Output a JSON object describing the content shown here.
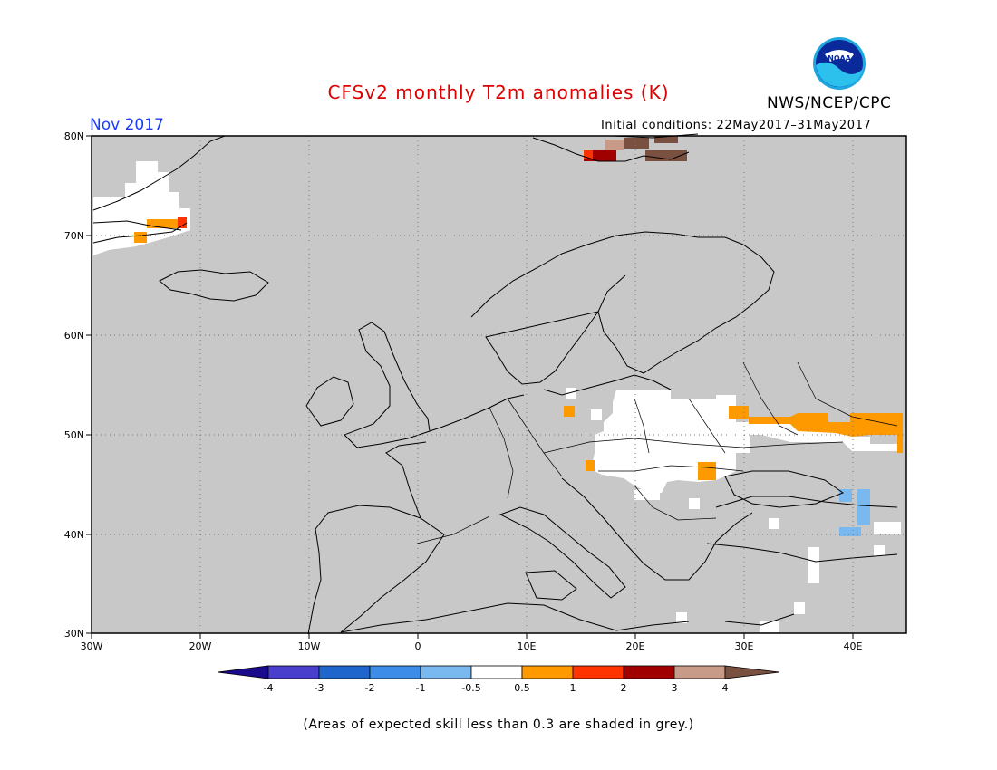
{
  "header": {
    "title": "CFSv2 monthly T2m anomalies (K)",
    "agency": "NWS/NCEP/CPC",
    "logo_text": "NOAA",
    "month": "Nov 2017",
    "initial_conditions": "Initial conditions: 22May2017–31May2017"
  },
  "map": {
    "lon_range": [
      -30,
      45
    ],
    "lat_range": [
      30,
      80
    ],
    "lon_ticks": [
      "30W",
      "20W",
      "10W",
      "0",
      "10E",
      "20E",
      "30E",
      "40E"
    ],
    "lat_ticks": [
      "30N",
      "40N",
      "50N",
      "60N",
      "70N",
      "80N"
    ],
    "grid": true,
    "grey_meaning": "skill < 0.3"
  },
  "colorbar": {
    "labels": [
      "-4",
      "-3",
      "-2",
      "-1",
      "-0.5",
      "0.5",
      "1",
      "2",
      "3",
      "4"
    ],
    "colors": [
      "#1a0a8c",
      "#4a3fcc",
      "#1f66cc",
      "#3d8ce8",
      "#7ab8f0",
      "#ffffff",
      "#ff9900",
      "#ff3300",
      "#a00000",
      "#c89a88",
      "#7a5040"
    ]
  },
  "footnote": "(Areas of expected skill less than 0.3 are shaded in grey.)",
  "colors": {
    "title": "#dd0000",
    "month": "#1a3cff",
    "grey": "#c8c8c8"
  }
}
